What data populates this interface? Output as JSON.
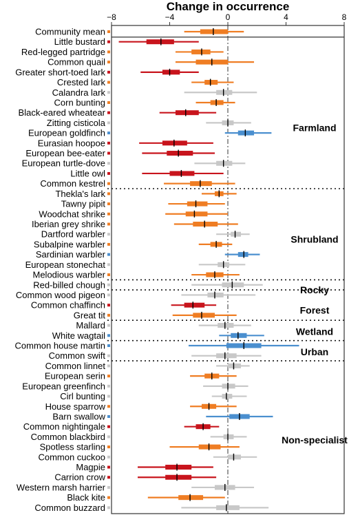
{
  "colors": {
    "red": "#c8141c",
    "orange": "#ef7d23",
    "blue": "#4a8fcf",
    "grey": "#c8c8c8",
    "median": "#000000"
  },
  "chart_data": {
    "type": "interval",
    "title": "Change in occurrence",
    "xlim": [
      -8,
      8
    ],
    "xticks": [
      -8,
      -4,
      0,
      4,
      8
    ],
    "reference_line": 0,
    "species": [
      {
        "name": "Community mean",
        "color": "orange",
        "median": -1.0,
        "inner": [
          -1.9,
          0.0
        ],
        "outer": [
          -3.0,
          1.1
        ]
      },
      {
        "name": "Little bustard",
        "color": "red",
        "median": -4.6,
        "inner": [
          -5.6,
          -3.7
        ],
        "outer": [
          -7.5,
          -2.0
        ]
      },
      {
        "name": "Red-legged partridge",
        "color": "orange",
        "median": -1.8,
        "inner": [
          -2.5,
          -1.2
        ],
        "outer": [
          -3.6,
          -0.3
        ]
      },
      {
        "name": "Common quail",
        "color": "orange",
        "median": -1.1,
        "inner": [
          -2.2,
          0.0
        ],
        "outer": [
          -3.6,
          1.8
        ]
      },
      {
        "name": "Greater short-toed lark",
        "color": "red",
        "median": -4.0,
        "inner": [
          -4.5,
          -3.3
        ],
        "outer": [
          -6.0,
          -2.0
        ]
      },
      {
        "name": "Crested lark",
        "color": "orange",
        "median": -1.2,
        "inner": [
          -1.6,
          -0.7
        ],
        "outer": [
          -2.5,
          0.4
        ]
      },
      {
        "name": "Calandra lark",
        "color": "grey",
        "median": -0.3,
        "inner": [
          -0.8,
          0.3
        ],
        "outer": [
          -3.0,
          2.0
        ]
      },
      {
        "name": "Corn bunting",
        "color": "orange",
        "median": -0.8,
        "inner": [
          -1.2,
          -0.3
        ],
        "outer": [
          -2.2,
          0.5
        ]
      },
      {
        "name": "Black-eared wheatear",
        "color": "red",
        "median": -2.9,
        "inner": [
          -3.6,
          -2.0
        ],
        "outer": [
          -4.7,
          -0.8
        ]
      },
      {
        "name": "Zitting cisticola",
        "color": "grey",
        "median": 0.0,
        "inner": [
          -0.4,
          0.4
        ],
        "outer": [
          -1.5,
          1.6
        ]
      },
      {
        "name": "European goldfinch",
        "color": "blue",
        "median": 1.2,
        "inner": [
          0.7,
          1.8
        ],
        "outer": [
          -0.2,
          3.0
        ]
      },
      {
        "name": "Eurasian hoopoe",
        "color": "red",
        "median": -3.7,
        "inner": [
          -4.5,
          -2.8
        ],
        "outer": [
          -6.1,
          -1.0
        ]
      },
      {
        "name": "European bee-eater",
        "color": "red",
        "median": -3.4,
        "inner": [
          -4.2,
          -2.4
        ],
        "outer": [
          -5.9,
          -0.9
        ]
      },
      {
        "name": "European turtle-dove",
        "color": "grey",
        "median": -0.3,
        "inner": [
          -0.8,
          0.3
        ],
        "outer": [
          -2.3,
          1.2
        ]
      },
      {
        "name": "Little owl",
        "color": "red",
        "median": -3.2,
        "inner": [
          -4.0,
          -2.3
        ],
        "outer": [
          -5.9,
          -0.3
        ]
      },
      {
        "name": "Common kestrel",
        "color": "orange",
        "median": -1.9,
        "inner": [
          -2.6,
          -1.1
        ],
        "outer": [
          -4.4,
          0.5
        ]
      },
      {
        "name": "Thekla's lark",
        "color": "orange",
        "median": -0.6,
        "inner": [
          -0.9,
          -0.3
        ],
        "outer": [
          -1.8,
          0.6
        ]
      },
      {
        "name": "Tawny pipit",
        "color": "orange",
        "median": -2.2,
        "inner": [
          -2.8,
          -1.4
        ],
        "outer": [
          -4.1,
          -0.2
        ]
      },
      {
        "name": "Woodchat shrike",
        "color": "orange",
        "median": -2.3,
        "inner": [
          -2.9,
          -1.4
        ],
        "outer": [
          -4.3,
          0.0
        ]
      },
      {
        "name": "Iberian grey shrike",
        "color": "orange",
        "median": -1.6,
        "inner": [
          -2.4,
          -0.7
        ],
        "outer": [
          -3.7,
          0.7
        ]
      },
      {
        "name": "Dartford warbler",
        "color": "grey",
        "median": 0.5,
        "inner": [
          0.2,
          0.9
        ],
        "outer": [
          -0.8,
          1.5
        ]
      },
      {
        "name": "Subalpine warbler",
        "color": "orange",
        "median": -0.8,
        "inner": [
          -1.2,
          -0.4
        ],
        "outer": [
          -2.0,
          0.3
        ]
      },
      {
        "name": "Sardinian warbler",
        "color": "blue",
        "median": 1.1,
        "inner": [
          0.7,
          1.4
        ],
        "outer": [
          -0.2,
          2.2
        ]
      },
      {
        "name": "European stonechat",
        "color": "grey",
        "median": -0.3,
        "inner": [
          -0.7,
          0.1
        ],
        "outer": [
          -2.0,
          1.2
        ]
      },
      {
        "name": "Melodious warbler",
        "color": "orange",
        "median": -0.9,
        "inner": [
          -1.5,
          -0.3
        ],
        "outer": [
          -2.5,
          0.8
        ]
      },
      {
        "name": "Red-billed chough",
        "color": "grey",
        "median": 0.3,
        "inner": [
          -0.4,
          1.1
        ],
        "outer": [
          -2.5,
          2.4
        ]
      },
      {
        "name": "Common wood pigeon",
        "color": "grey",
        "median": -0.9,
        "inner": [
          -1.4,
          -0.3
        ],
        "outer": [
          -3.2,
          1.9
        ]
      },
      {
        "name": "Common chaffinch",
        "color": "red",
        "median": -2.4,
        "inner": [
          -3.0,
          -1.6
        ],
        "outer": [
          -3.9,
          -0.8
        ]
      },
      {
        "name": "Great tit",
        "color": "orange",
        "median": -1.8,
        "inner": [
          -2.4,
          -0.9
        ],
        "outer": [
          -3.8,
          0.6
        ]
      },
      {
        "name": "Mallard",
        "color": "grey",
        "median": -0.2,
        "inner": [
          -0.7,
          0.4
        ],
        "outer": [
          -2.0,
          1.6
        ]
      },
      {
        "name": "White wagtail",
        "color": "blue",
        "median": 0.7,
        "inner": [
          0.2,
          1.3
        ],
        "outer": [
          -0.6,
          2.5
        ]
      },
      {
        "name": "Common house martin",
        "color": "blue",
        "median": 1.1,
        "inner": [
          -0.1,
          2.3
        ],
        "outer": [
          -2.7,
          4.9
        ]
      },
      {
        "name": "Common swift",
        "color": "grey",
        "median": -0.2,
        "inner": [
          -0.8,
          0.6
        ],
        "outer": [
          -2.5,
          2.3
        ]
      },
      {
        "name": "Common linnet",
        "color": "grey",
        "median": 0.4,
        "inner": [
          0.0,
          0.9
        ],
        "outer": [
          -0.8,
          1.5
        ]
      },
      {
        "name": "European serin",
        "color": "orange",
        "median": -1.1,
        "inner": [
          -1.6,
          -0.6
        ],
        "outer": [
          -2.6,
          0.6
        ]
      },
      {
        "name": "European greenfinch",
        "color": "grey",
        "median": 0.0,
        "inner": [
          -0.4,
          0.5
        ],
        "outer": [
          -1.7,
          1.4
        ]
      },
      {
        "name": "Cirl bunting",
        "color": "grey",
        "median": -0.1,
        "inner": [
          -0.4,
          0.3
        ],
        "outer": [
          -1.1,
          1.3
        ]
      },
      {
        "name": "House sparrow",
        "color": "orange",
        "median": -1.3,
        "inner": [
          -1.8,
          -0.8
        ],
        "outer": [
          -2.6,
          0.6
        ]
      },
      {
        "name": "Barn swallow",
        "color": "blue",
        "median": 0.8,
        "inner": [
          0.1,
          1.5
        ],
        "outer": [
          -1.5,
          3.1
        ]
      },
      {
        "name": "Common nightingale",
        "color": "red",
        "median": -1.7,
        "inner": [
          -2.2,
          -1.2
        ],
        "outer": [
          -3.0,
          -0.6
        ]
      },
      {
        "name": "Common blackbird",
        "color": "grey",
        "median": 0.0,
        "inner": [
          -0.3,
          0.4
        ],
        "outer": [
          -1.2,
          1.3
        ]
      },
      {
        "name": "Spotless starling",
        "color": "orange",
        "median": -1.3,
        "inner": [
          -2.0,
          -0.5
        ],
        "outer": [
          -4.0,
          0.8
        ]
      },
      {
        "name": "Common cuckoo",
        "color": "grey",
        "median": 0.4,
        "inner": [
          0.0,
          0.9
        ],
        "outer": [
          -1.0,
          2.0
        ]
      },
      {
        "name": "Magpie",
        "color": "red",
        "median": -3.5,
        "inner": [
          -4.3,
          -2.5
        ],
        "outer": [
          -6.2,
          -1.0
        ]
      },
      {
        "name": "Carrion crow",
        "color": "red",
        "median": -3.5,
        "inner": [
          -4.3,
          -2.5
        ],
        "outer": [
          -6.2,
          -0.8
        ]
      },
      {
        "name": "Western marsh harrier",
        "color": "grey",
        "median": -0.2,
        "inner": [
          -0.9,
          0.5
        ],
        "outer": [
          -2.5,
          1.8
        ]
      },
      {
        "name": "Black kite",
        "color": "orange",
        "median": -2.6,
        "inner": [
          -3.4,
          -1.7
        ],
        "outer": [
          -5.5,
          -0.2
        ]
      },
      {
        "name": "Common buzzard",
        "color": "grey",
        "median": -0.1,
        "inner": [
          -0.8,
          0.8
        ],
        "outer": [
          -3.2,
          2.8
        ]
      }
    ],
    "groups": [
      {
        "label": "Farmland",
        "row": 9.5
      },
      {
        "label": "Shrubland",
        "row": 20.5
      },
      {
        "label": "Rocky",
        "row": 25.5
      },
      {
        "label": "Forest",
        "row": 27.5
      },
      {
        "label": "Wetland",
        "row": 29.6
      },
      {
        "label": "Urban",
        "row": 31.6
      },
      {
        "label": "Non-specialist",
        "row": 40.3
      }
    ],
    "separators_after_row": [
      15,
      24,
      25,
      28,
      30,
      32
    ],
    "grid": false
  }
}
